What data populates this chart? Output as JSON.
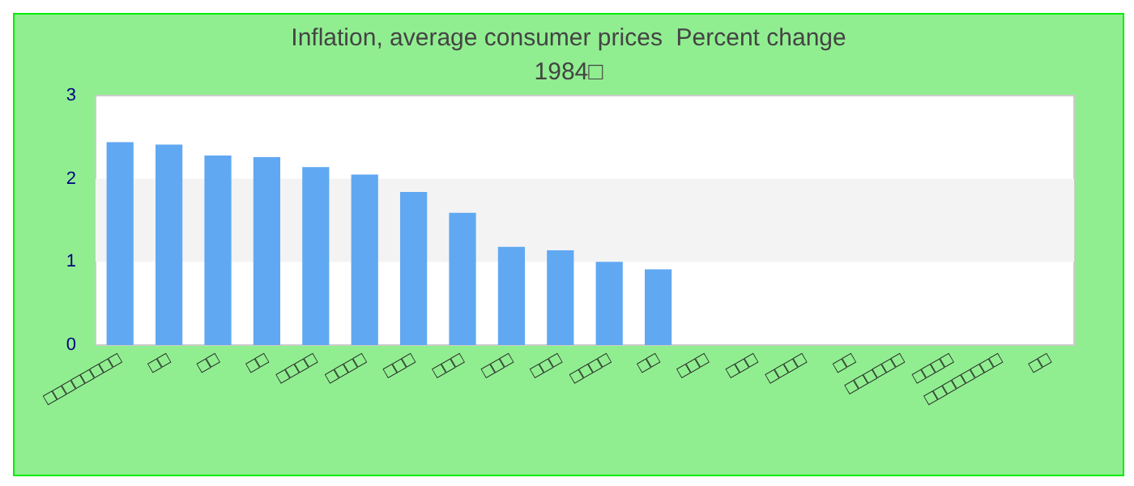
{
  "chart_data": {
    "type": "bar",
    "title": "Inflation, average consumer prices  Percent change",
    "subtitle": "1984□",
    "categories": [
      "□□□□□□□□",
      "□□",
      "□□",
      "□□",
      "□□□□",
      "□□□□",
      "□□□",
      "□□□",
      "□□□",
      "□□□",
      "□□□□",
      "□□",
      "□□□",
      "□□□",
      "□□□□",
      "□□",
      "□□□□□□",
      "□□□□",
      "□□□□□□□□",
      "□□"
    ],
    "values": [
      2.44,
      2.41,
      2.28,
      2.26,
      2.14,
      2.05,
      1.84,
      1.59,
      1.18,
      1.14,
      1.0,
      0.91,
      null,
      null,
      null,
      null,
      null,
      null,
      null,
      null
    ],
    "color": "#60a8f2",
    "ylim": [
      0,
      3
    ],
    "yticks": [
      0,
      1,
      2,
      3
    ],
    "bands": [
      {
        "axis": "y",
        "from": 1,
        "to": 2,
        "color": "#f3f3f3"
      }
    ]
  }
}
